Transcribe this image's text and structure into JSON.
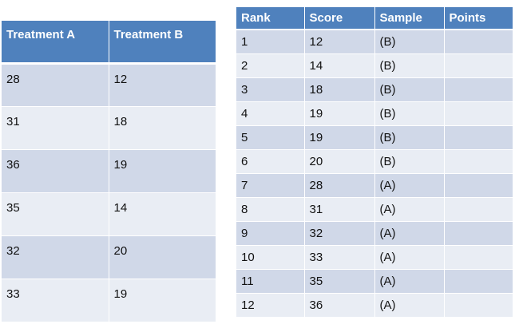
{
  "left_table": {
    "headers": [
      "Treatment A",
      "Treatment B"
    ],
    "rows": [
      [
        "28",
        "12"
      ],
      [
        "31",
        "18"
      ],
      [
        "36",
        "19"
      ],
      [
        "35",
        "14"
      ],
      [
        "32",
        "20"
      ],
      [
        "33",
        "19"
      ]
    ]
  },
  "right_table": {
    "headers": [
      "Rank",
      "Score",
      "Sample",
      "Points"
    ],
    "rows": [
      [
        "1",
        "12",
        "(B)",
        ""
      ],
      [
        "2",
        "14",
        "(B)",
        ""
      ],
      [
        "3",
        "18",
        "(B)",
        ""
      ],
      [
        "4",
        "19",
        "(B)",
        ""
      ],
      [
        "5",
        "19",
        "(B)",
        ""
      ],
      [
        "6",
        "20",
        "(B)",
        ""
      ],
      [
        "7",
        "28",
        "(A)",
        ""
      ],
      [
        "8",
        "31",
        "(A)",
        ""
      ],
      [
        "9",
        "32",
        "(A)",
        ""
      ],
      [
        "10",
        "33",
        "(A)",
        ""
      ],
      [
        "11",
        "35",
        "(A)",
        ""
      ],
      [
        "12",
        "36",
        "(A)",
        ""
      ]
    ]
  },
  "colors": {
    "header_bg": "#4f81bd",
    "row_band_dark": "#d0d8e8",
    "row_band_light": "#e9edf4"
  }
}
